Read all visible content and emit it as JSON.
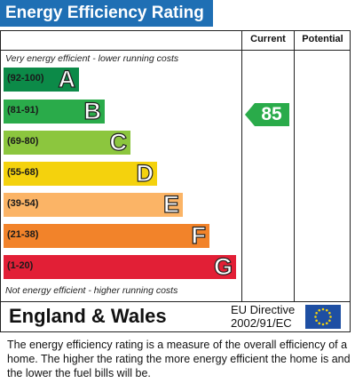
{
  "title": "Energy Efficiency Rating",
  "columns": {
    "current": "Current",
    "potential": "Potential"
  },
  "notes": {
    "top": "Very energy efficient - lower running costs",
    "bottom": "Not energy efficient - higher running costs"
  },
  "bands": [
    {
      "range": "(92-100)",
      "letter": "A",
      "color": "#0c8a48"
    },
    {
      "range": "(81-91)",
      "letter": "B",
      "color": "#2aab4a"
    },
    {
      "range": "(69-80)",
      "letter": "C",
      "color": "#8cc63e"
    },
    {
      "range": "(55-68)",
      "letter": "D",
      "color": "#f4d20d"
    },
    {
      "range": "(39-54)",
      "letter": "E",
      "color": "#fbb466"
    },
    {
      "range": "(21-38)",
      "letter": "F",
      "color": "#f2832a"
    },
    {
      "range": "(1-20)",
      "letter": "G",
      "color": "#e21f36"
    }
  ],
  "current_rating": {
    "value": "85",
    "band": "B",
    "color": "#2aab4a"
  },
  "potential_rating": null,
  "region": "England & Wales",
  "directive": {
    "line1": "EU Directive",
    "line2": "2002/91/EC"
  },
  "footer_text": "The energy efficiency rating is a measure of the overall efficiency of a home.  The higher the rating the more energy efficient the home is and the lower the fuel bills will be.",
  "colors": {
    "title_bg": "#1f6fb4",
    "eu_flag_bg": "#1e4fa3",
    "eu_stars": "#f4d20d"
  },
  "icons": {
    "eu_flag": "eu-flag-icon"
  }
}
